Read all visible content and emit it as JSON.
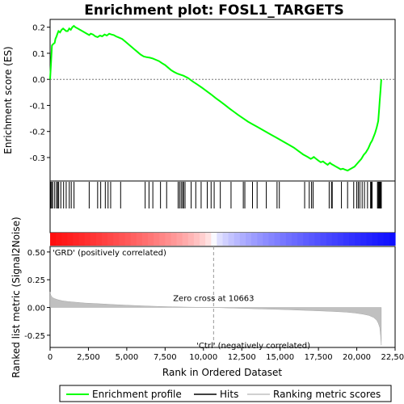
{
  "chart_data": {
    "type": "line",
    "title": "Enrichment plot: FOSL1_TARGETS",
    "top_panel": {
      "ylabel": "Enrichment score (ES)",
      "ylim": [
        -0.39,
        0.23
      ],
      "yticks": [
        -0.3,
        -0.2,
        -0.1,
        0.0,
        0.1,
        0.2
      ],
      "ytick_labels": [
        "-0.3",
        "-0.2",
        "-0.1",
        "0.0",
        "0.1",
        "0.2"
      ],
      "series_name": "Enrichment profile",
      "series_color": "#00ff00",
      "x": [
        0,
        60,
        120,
        200,
        300,
        350,
        420,
        480,
        550,
        650,
        750,
        850,
        950,
        1050,
        1150,
        1250,
        1350,
        1450,
        1550,
        1650,
        1800,
        1950,
        2100,
        2250,
        2400,
        2550,
        2650,
        2800,
        2950,
        3100,
        3250,
        3400,
        3550,
        3700,
        3850,
        4000,
        4150,
        4300,
        4500,
        4700,
        4900,
        5100,
        5300,
        5500,
        5700,
        5900,
        6100,
        6300,
        6500,
        6700,
        6900,
        7100,
        7300,
        7500,
        7700,
        7900,
        8100,
        8300,
        8500,
        8700,
        9000,
        9300,
        9600,
        9900,
        10200,
        10500,
        10800,
        11100,
        11400,
        11700,
        12000,
        12300,
        12600,
        12900,
        13200,
        13500,
        13800,
        14100,
        14400,
        14700,
        15000,
        15300,
        15600,
        15900,
        16200,
        16500,
        16800,
        17000,
        17100,
        17200,
        17350,
        17500,
        17650,
        17800,
        17950,
        18100,
        18250,
        18350,
        18500,
        18650,
        18800,
        18950,
        19100,
        19250,
        19400,
        19550,
        19700,
        19850,
        20000,
        20150,
        20300,
        20450,
        20600,
        20750,
        20900,
        21000,
        21100,
        21200,
        21300,
        21400,
        21450,
        21500,
        21550,
        21600
      ],
      "y": [
        0.0,
        0.06,
        0.13,
        0.135,
        0.14,
        0.155,
        0.165,
        0.175,
        0.185,
        0.18,
        0.19,
        0.195,
        0.19,
        0.185,
        0.185,
        0.195,
        0.19,
        0.2,
        0.205,
        0.2,
        0.195,
        0.19,
        0.185,
        0.18,
        0.175,
        0.17,
        0.175,
        0.172,
        0.165,
        0.162,
        0.168,
        0.165,
        0.172,
        0.168,
        0.175,
        0.172,
        0.17,
        0.165,
        0.16,
        0.155,
        0.145,
        0.135,
        0.125,
        0.115,
        0.105,
        0.095,
        0.088,
        0.085,
        0.083,
        0.08,
        0.075,
        0.07,
        0.062,
        0.055,
        0.045,
        0.035,
        0.028,
        0.022,
        0.018,
        0.014,
        0.005,
        -0.008,
        -0.02,
        -0.032,
        -0.045,
        -0.058,
        -0.072,
        -0.085,
        -0.098,
        -0.112,
        -0.125,
        -0.138,
        -0.15,
        -0.162,
        -0.172,
        -0.182,
        -0.192,
        -0.202,
        -0.212,
        -0.222,
        -0.232,
        -0.242,
        -0.252,
        -0.262,
        -0.275,
        -0.288,
        -0.298,
        -0.305,
        -0.302,
        -0.298,
        -0.305,
        -0.312,
        -0.318,
        -0.315,
        -0.322,
        -0.328,
        -0.32,
        -0.325,
        -0.33,
        -0.335,
        -0.34,
        -0.345,
        -0.343,
        -0.347,
        -0.35,
        -0.345,
        -0.34,
        -0.335,
        -0.325,
        -0.315,
        -0.305,
        -0.29,
        -0.28,
        -0.265,
        -0.245,
        -0.235,
        -0.22,
        -0.205,
        -0.185,
        -0.16,
        -0.12,
        -0.08,
        -0.04,
        0.0
      ]
    },
    "hits": {
      "positions": [
        40,
        100,
        170,
        300,
        420,
        490,
        560,
        700,
        880,
        1050,
        1250,
        1380,
        1560,
        2550,
        3100,
        3300,
        3600,
        3780,
        3950,
        4600,
        6200,
        6450,
        6700,
        7200,
        7600,
        8350,
        8450,
        8550,
        8650,
        8700,
        8800,
        9200,
        9500,
        9850,
        10250,
        10500,
        10700,
        11100,
        11800,
        12600,
        12700,
        13200,
        13500,
        14100,
        14800,
        14950,
        16600,
        16900,
        17050,
        17150,
        18200,
        18350,
        18400,
        19000,
        19400,
        19800,
        20000,
        20100,
        20200,
        20350,
        20500,
        20700,
        20900,
        20950,
        21000,
        21350,
        21400,
        21450,
        21500,
        21550,
        21600
      ]
    },
    "bottom_panel": {
      "ylabel": "Ranked list metric (Signal2Noise)",
      "ylim": [
        -0.36,
        0.55
      ],
      "yticks": [
        -0.25,
        0.0,
        0.25,
        0.5
      ],
      "ytick_labels": [
        "-0.25",
        "0.00",
        "0.25",
        "0.50"
      ],
      "x": [
        0,
        50,
        150,
        300,
        500,
        800,
        1200,
        1700,
        2300,
        3000,
        4000,
        5000,
        6000,
        7000,
        8000,
        9000,
        10000,
        10663,
        11500,
        12500,
        13500,
        14500,
        15500,
        16500,
        17500,
        18500,
        19300,
        19900,
        20400,
        20800,
        21100,
        21300,
        21400,
        21500,
        21550,
        21600
      ],
      "values": [
        0.14,
        0.11,
        0.09,
        0.08,
        0.07,
        0.06,
        0.053,
        0.047,
        0.04,
        0.035,
        0.027,
        0.021,
        0.015,
        0.01,
        0.006,
        0.003,
        0.001,
        0.0,
        -0.004,
        -0.008,
        -0.012,
        -0.016,
        -0.02,
        -0.025,
        -0.03,
        -0.036,
        -0.042,
        -0.05,
        -0.06,
        -0.072,
        -0.09,
        -0.115,
        -0.14,
        -0.18,
        -0.25,
        -0.34
      ],
      "zero_cross_label": "Zero cross at 10663",
      "zero_cross_x": 10663,
      "pos_label": "'GRD' (positively correlated)",
      "pos_color": "#cc0000",
      "neg_label": "'Ctrl' (negatively correlated)",
      "neg_color": "#0000cc"
    },
    "xlabel": "Rank in Ordered Dataset",
    "xlim": [
      0,
      22500
    ],
    "xticks": [
      0,
      2500,
      5000,
      7500,
      10000,
      12500,
      15000,
      17500,
      20000,
      22500
    ],
    "xtick_labels": [
      "0",
      "2,500",
      "5,000",
      "7,500",
      "10,000",
      "12,500",
      "15,000",
      "17,500",
      "20,000",
      "22,500"
    ],
    "legend": {
      "placement": "bottom",
      "items": [
        {
          "label": "Enrichment profile",
          "color": "#00ff00"
        },
        {
          "label": "Hits",
          "color": "#000000"
        },
        {
          "label": "Ranking metric scores",
          "color": "#c0c0c0"
        }
      ]
    }
  }
}
